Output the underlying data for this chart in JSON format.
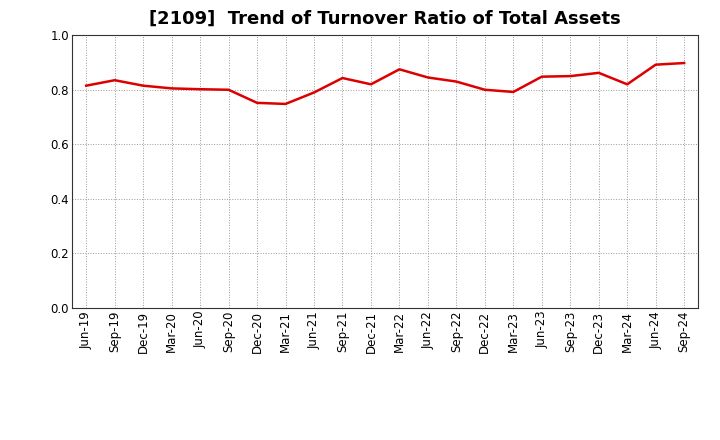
{
  "title": "[2109]  Trend of Turnover Ratio of Total Assets",
  "x_labels": [
    "Jun-19",
    "Sep-19",
    "Dec-19",
    "Mar-20",
    "Jun-20",
    "Sep-20",
    "Dec-20",
    "Mar-21",
    "Jun-21",
    "Sep-21",
    "Dec-21",
    "Mar-22",
    "Jun-22",
    "Sep-22",
    "Dec-22",
    "Mar-23",
    "Jun-23",
    "Sep-23",
    "Dec-23",
    "Mar-24",
    "Jun-24",
    "Sep-24"
  ],
  "values": [
    0.815,
    0.835,
    0.815,
    0.805,
    0.802,
    0.8,
    0.752,
    0.748,
    0.79,
    0.843,
    0.82,
    0.875,
    0.845,
    0.83,
    0.8,
    0.792,
    0.848,
    0.85,
    0.862,
    0.82,
    0.892,
    0.898
  ],
  "line_color": "#dd0000",
  "line_width": 1.8,
  "ylim": [
    0.0,
    1.0
  ],
  "yticks": [
    0.0,
    0.2,
    0.4,
    0.6,
    0.8,
    1.0
  ],
  "background_color": "#ffffff",
  "plot_bg_color": "#ffffff",
  "grid_color": "#999999",
  "title_fontsize": 13,
  "tick_fontsize": 8.5
}
